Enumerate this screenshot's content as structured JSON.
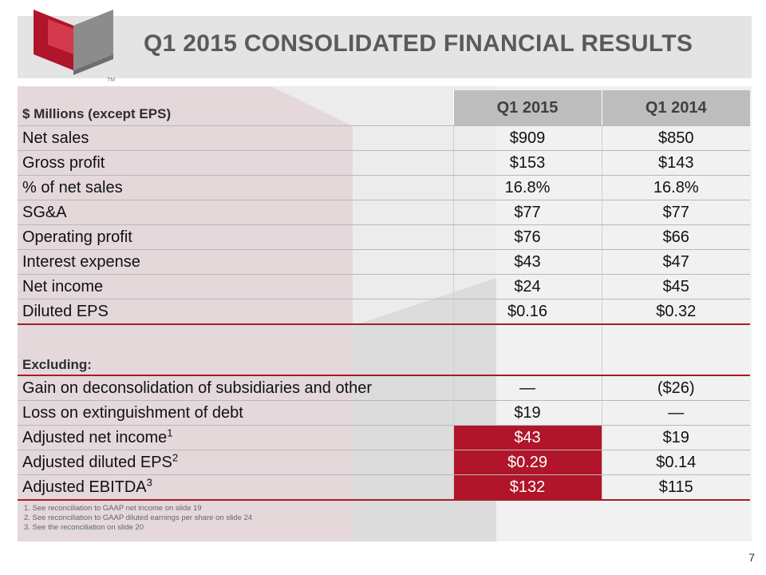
{
  "slide": {
    "title": "Q1 2015 CONSOLIDATED FINANCIAL RESULTS",
    "page_number": "7",
    "logo": {
      "icon": "company-logo-icon",
      "mark": "TM"
    },
    "colors": {
      "accent": "#b0152a",
      "header_band": "#e4e4e4",
      "column_header": "#bdbdbd",
      "panel": "#efefef"
    }
  },
  "table": {
    "header": {
      "label": "$ Millions (except EPS)",
      "col1": "Q1 2015",
      "col2": "Q1 2014"
    },
    "rows": [
      {
        "label": "Net sales",
        "q1_2015": "$909",
        "q1_2014": "$850"
      },
      {
        "label": "Gross profit",
        "q1_2015": "$153",
        "q1_2014": "$143"
      },
      {
        "label": "% of net sales",
        "q1_2015": "16.8%",
        "q1_2014": "16.8%"
      },
      {
        "label": "SG&A",
        "q1_2015": "$77",
        "q1_2014": "$77"
      },
      {
        "label": "Operating profit",
        "q1_2015": "$76",
        "q1_2014": "$66"
      },
      {
        "label": "Interest expense",
        "q1_2015": "$43",
        "q1_2014": "$47"
      },
      {
        "label": "Net income",
        "q1_2015": "$24",
        "q1_2014": "$45"
      },
      {
        "label": "Diluted EPS",
        "q1_2015": "$0.16",
        "q1_2014": "$0.32"
      }
    ],
    "excluding_label": "Excluding:",
    "excluding_rows": [
      {
        "label": "Gain on deconsolidation of subsidiaries and other",
        "q1_2015": "—",
        "q1_2014": "($26)"
      },
      {
        "label": "Loss on extinguishment of debt",
        "q1_2015": "$19",
        "q1_2014": "—"
      }
    ],
    "adjusted_rows": [
      {
        "label": "Adjusted net income",
        "sup": "1",
        "q1_2015": "$43",
        "q1_2014": "$19"
      },
      {
        "label": "Adjusted diluted EPS",
        "sup": "2",
        "q1_2015": "$0.29",
        "q1_2014": "$0.14"
      },
      {
        "label": "Adjusted EBITDA",
        "sup": "3",
        "q1_2015": "$132",
        "q1_2014": "$115"
      }
    ]
  },
  "footnotes": [
    "1. See reconciliation to GAAP net income on slide 19",
    "2. See reconciliation to GAAP diluted earnings per share on slide 24",
    "3. See the reconciliation on slide 20"
  ]
}
